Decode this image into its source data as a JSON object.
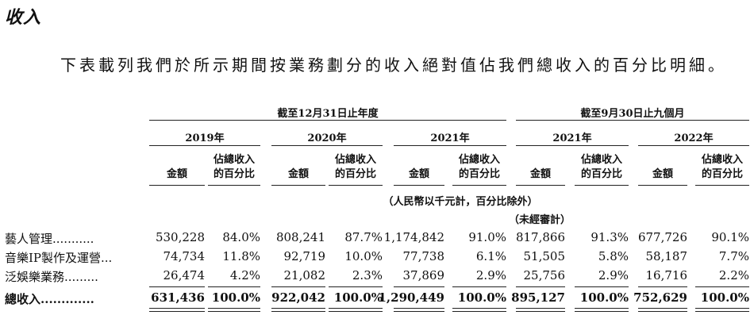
{
  "section_title": "收入",
  "intro": "下表載列我們於所示期間按業務劃分的收入絕對值佔我們總收入的百分比明細。",
  "group_headers": {
    "fiscal": "截至12月31日止年度",
    "ytd": "截至9月30日止九個月"
  },
  "years": [
    "2019年",
    "2020年",
    "2021年",
    "2021年",
    "2022年"
  ],
  "sub_amount": "金額",
  "sub_pct_line1": "佔總收入",
  "sub_pct_line2": "的百分比",
  "unit_note": "（人民幣以千元計，百分比除外）",
  "unaudited_note": "（未經審計）",
  "rows": [
    {
      "label": "藝人管理...........",
      "cells": [
        "530,228",
        "84.0%",
        "808,241",
        "87.7%",
        "1,174,842",
        "91.0%",
        "817,866",
        "91.3%",
        "677,726",
        "90.1%"
      ]
    },
    {
      "label": "音樂IP製作及運營...",
      "cells": [
        "74,734",
        "11.8%",
        "92,719",
        "10.0%",
        "77,738",
        "6.1%",
        "51,505",
        "5.8%",
        "58,187",
        "7.7%"
      ]
    },
    {
      "label": "泛娛樂業務.........",
      "cells": [
        "26,474",
        "4.2%",
        "21,082",
        "2.3%",
        "37,869",
        "2.9%",
        "25,756",
        "2.9%",
        "16,716",
        "2.2%"
      ]
    },
    {
      "label": "總收入.............",
      "cells": [
        "631,436",
        "100.0%",
        "922,042",
        "100.0%",
        "1,290,449",
        "100.0%",
        "895,127",
        "100.0%",
        "752,629",
        "100.0%"
      ]
    }
  ]
}
